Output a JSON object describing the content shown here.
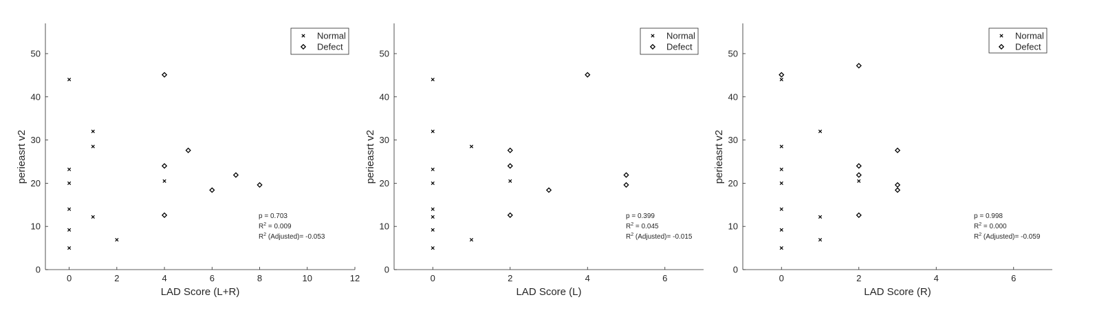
{
  "chart_data": [
    {
      "type": "scatter",
      "xlabel": "LAD Score (L+R)",
      "ylabel": "perieasrt v2",
      "xlim": [
        -1,
        12
      ],
      "ylim": [
        0,
        57
      ],
      "xticks": [
        0,
        2,
        4,
        6,
        8,
        10,
        12
      ],
      "yticks": [
        0,
        10,
        20,
        30,
        40,
        50
      ],
      "legend_position": "top-right",
      "series": [
        {
          "name": "Normal",
          "marker": "x",
          "points": [
            [
              0,
              44
            ],
            [
              0,
              23.2
            ],
            [
              0,
              20
            ],
            [
              0,
              14
            ],
            [
              0,
              9.2
            ],
            [
              0,
              5
            ],
            [
              1,
              32
            ],
            [
              1,
              28.5
            ],
            [
              1,
              12.2
            ],
            [
              2,
              6.9
            ],
            [
              4,
              20.5
            ]
          ]
        },
        {
          "name": "Defect",
          "marker": "diamond",
          "points": [
            [
              4,
              45.1
            ],
            [
              4,
              24
            ],
            [
              4,
              12.6
            ],
            [
              5,
              27.6
            ],
            [
              6,
              18.4
            ],
            [
              7,
              21.9
            ],
            [
              8,
              19.6
            ]
          ]
        }
      ],
      "stats": {
        "p": "p = 0.703",
        "r2_label": "R",
        "r2_value": " = 0.009",
        "r2adj_label": "R",
        "r2adj_value": " (Adjusted)= -0.053",
        "sup": "2"
      }
    },
    {
      "type": "scatter",
      "xlabel": "LAD Score (L)",
      "ylabel": "perieasrt v2",
      "xlim": [
        -1,
        7
      ],
      "ylim": [
        0,
        57
      ],
      "xticks": [
        0,
        2,
        4,
        6
      ],
      "yticks": [
        0,
        10,
        20,
        30,
        40,
        50
      ],
      "legend_position": "top-right",
      "series": [
        {
          "name": "Normal",
          "marker": "x",
          "points": [
            [
              0,
              44
            ],
            [
              0,
              32
            ],
            [
              0,
              23.2
            ],
            [
              0,
              20
            ],
            [
              0,
              14
            ],
            [
              0,
              12.2
            ],
            [
              0,
              9.2
            ],
            [
              0,
              5
            ],
            [
              1,
              28.5
            ],
            [
              1,
              6.9
            ],
            [
              2,
              20.5
            ]
          ]
        },
        {
          "name": "Defect",
          "marker": "diamond",
          "points": [
            [
              2,
              27.6
            ],
            [
              2,
              24
            ],
            [
              2,
              12.6
            ],
            [
              3,
              18.4
            ],
            [
              4,
              45.1
            ],
            [
              5,
              21.9
            ],
            [
              5,
              19.6
            ]
          ]
        }
      ],
      "stats": {
        "p": "p = 0.399",
        "r2_label": "R",
        "r2_value": " = 0.045",
        "r2adj_label": "R",
        "r2adj_value": " (Adjusted)= -0.015",
        "sup": "2"
      }
    },
    {
      "type": "scatter",
      "xlabel": "LAD Score (R)",
      "ylabel": "perieasrt v2",
      "xlim": [
        -1,
        7
      ],
      "ylim": [
        0,
        57
      ],
      "xticks": [
        0,
        2,
        4,
        6
      ],
      "yticks": [
        0,
        10,
        20,
        30,
        40,
        50
      ],
      "legend_position": "top-right",
      "series": [
        {
          "name": "Normal",
          "marker": "x",
          "points": [
            [
              0,
              44
            ],
            [
              0,
              28.5
            ],
            [
              0,
              23.2
            ],
            [
              0,
              20
            ],
            [
              0,
              14
            ],
            [
              0,
              9.2
            ],
            [
              0,
              5
            ],
            [
              1,
              32
            ],
            [
              1,
              12.2
            ],
            [
              1,
              6.9
            ],
            [
              2,
              20.5
            ]
          ]
        },
        {
          "name": "Defect",
          "marker": "diamond",
          "points": [
            [
              0,
              45.1
            ],
            [
              2,
              47.2
            ],
            [
              2,
              24
            ],
            [
              2,
              21.9
            ],
            [
              2,
              12.6
            ],
            [
              3,
              27.6
            ],
            [
              3,
              19.6
            ],
            [
              3,
              18.4
            ]
          ]
        }
      ],
      "stats": {
        "p": "p = 0.998",
        "r2_label": "R",
        "r2_value": " = 0.000",
        "r2adj_label": "R",
        "r2adj_value": " (Adjusted)= -0.059",
        "sup": "2"
      }
    }
  ]
}
